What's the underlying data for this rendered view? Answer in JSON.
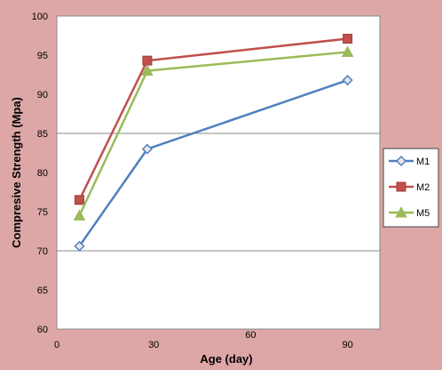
{
  "chart_data": {
    "type": "line",
    "title": "",
    "xlabel": "Age (day)",
    "ylabel": "Compresive Strength (Mpa)",
    "xlim": [
      0,
      100
    ],
    "ylim": [
      60,
      100
    ],
    "x_ticks": [
      0,
      30,
      60,
      90
    ],
    "y_ticks": [
      60,
      65,
      70,
      75,
      80,
      85,
      90,
      95,
      100
    ],
    "gridlines_y": [
      70,
      85,
      100
    ],
    "legend_position": "right",
    "series": [
      {
        "name": "M1",
        "color": "#4f81bd",
        "marker": "diamond",
        "x": [
          7,
          28,
          90
        ],
        "y": [
          70.6,
          83.0,
          91.8
        ]
      },
      {
        "name": "M2",
        "color": "#c0504d",
        "marker": "square",
        "x": [
          7,
          28,
          90
        ],
        "y": [
          76.5,
          94.3,
          97.1
        ]
      },
      {
        "name": "M5",
        "color": "#9bbb59",
        "marker": "triangle",
        "x": [
          7,
          28,
          90
        ],
        "y": [
          74.5,
          93.0,
          95.4
        ]
      }
    ]
  }
}
